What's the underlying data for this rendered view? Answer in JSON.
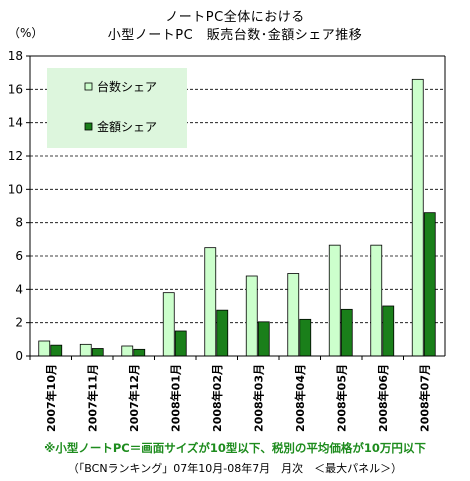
{
  "chart_data": {
    "type": "bar",
    "title": "ノートPC全体における",
    "subtitle": "小型ノートPC　販売台数･金額シェア推移",
    "ylabel": "（%）",
    "xlabel": "",
    "ylim": [
      0,
      18
    ],
    "yticks": [
      0,
      2,
      4,
      6,
      8,
      10,
      12,
      14,
      16,
      18
    ],
    "grid": true,
    "legend_position": "top-left",
    "categories": [
      "2007年10月",
      "2007年11月",
      "2007年12月",
      "2008年01月",
      "2008年02月",
      "2008年03月",
      "2008年04月",
      "2008年05月",
      "2008年06月",
      "2008年07月"
    ],
    "series": [
      {
        "name": "台数シェア",
        "color": "#ccffcc",
        "values": [
          0.9,
          0.7,
          0.6,
          3.8,
          6.5,
          4.8,
          4.95,
          6.65,
          6.65,
          16.6
        ]
      },
      {
        "name": "金額シェア",
        "color": "#1a7f1a",
        "values": [
          0.65,
          0.45,
          0.4,
          1.5,
          2.75,
          2.05,
          2.2,
          2.8,
          3.0,
          8.6
        ]
      }
    ]
  },
  "notes": {
    "definition": "※小型ノートPC＝画面サイズが10型以下、税別の平均価格が10万円以下",
    "source": "（「BCNランキング」07年10月-08年7月　月次　＜最大パネル＞）"
  },
  "colors": {
    "legend_bg": "#ddf6dd",
    "grid": "#000000"
  }
}
